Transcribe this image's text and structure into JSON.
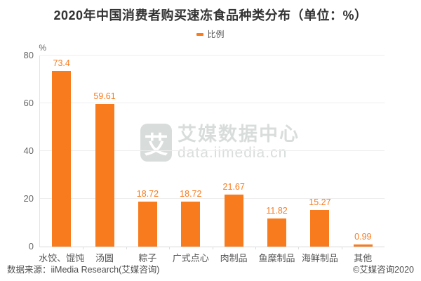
{
  "title": "2020年中国消费者购买速冻食品种类分布（单位：%）",
  "legend": {
    "label": "比例"
  },
  "y_axis": {
    "unit": "%"
  },
  "watermark": {
    "logo_char": "艾",
    "name": "艾媒数据中心",
    "url": "data.iimedia.cn"
  },
  "footer": {
    "source": "数据来源：iiMedia Research(艾媒咨询)",
    "copyright": "©艾媒咨询2020"
  },
  "colors": {
    "bar": "#F87B1E",
    "value_label": "#F87B1E",
    "grid": "#EDEDED",
    "axis": "#D9D9D9",
    "tick_label": "#666666",
    "watermark": "#D8DDDB",
    "title": "#333333"
  },
  "chart_data": {
    "type": "bar",
    "title": "2020年中国消费者购买速冻食品种类分布（单位：%）",
    "series_name": "比例",
    "categories": [
      "水饺、馄饨",
      "汤圆",
      "粽子",
      "广式点心",
      "肉制品",
      "鱼糜制品",
      "海鲜制品",
      "其他"
    ],
    "values": [
      73.4,
      59.61,
      18.72,
      18.72,
      21.67,
      11.82,
      15.27,
      0.99
    ],
    "xlabel": "",
    "ylabel": "%",
    "ylim": [
      0,
      80
    ],
    "yticks": [
      0,
      20,
      40,
      60,
      80
    ],
    "grid": true,
    "legend_position": "top-center"
  }
}
